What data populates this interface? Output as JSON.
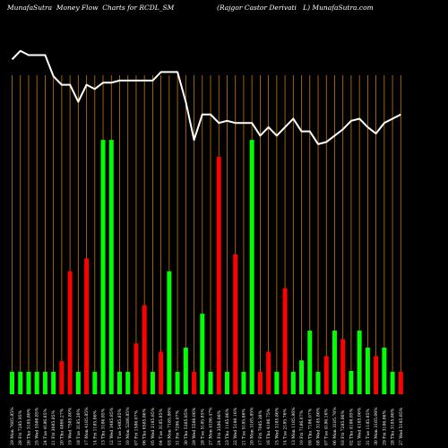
{
  "chart_data": {
    "type": "bar",
    "title": "MunafaSutra  Money Flow  Charts for RCDL_SM                    (Rajgor Castor Derivati   L) MunafaSutra.com",
    "x": [
      "29 Mon 7685.85%",
      "28 Fri 7285.95%",
      "26 Thu 3185.86%",
      "25 Wed 5586.85%",
      "24 Tue 4186.85%",
      "21 Fri 3085.85%",
      "20 Thu 4860.27%",
      "19 Wed 7585.80%",
      "18 Tue 3185.26%",
      "17 Mon 4185.85%",
      "14 Fri 1185.86%",
      "13 Thu 3186.85%",
      "12 Wed 3485.85%",
      "11 Tue 5485.85%",
      "10 Mon 5286.85%",
      "07 Fri 1586.07%",
      "06 Thu 6585.86%",
      "05 Wed 3185.85%",
      "04 Tue 3185.85%",
      "03 Mon 7185.86%",
      "31 Fri 7286.07%",
      "30 Thu 5385.85%",
      "29 Wed 5586.06%",
      "28 Tue 5185.85%",
      "27 Mon 4186.47%",
      "24 Fri 3586.08%",
      "23 Thu 1185.86%",
      "22 Wed 5186.16%",
      "21 Tue 5185.86%",
      "20 Mon 3185.85%",
      "17 Fri 7085.38%",
      "16 Thu 4186.75%",
      "15 Wed 3185.86%",
      "14 Tue 2185.76%",
      "13 Mon 1185.86%",
      "10 Fri 7186.07%",
      "09 Thu 7186.07%",
      "08 Wed 3185.86%",
      "07 Tue 4186.16%",
      "06 Mon 3185.76%",
      "03 Fri 7285.86%",
      "02 Thu 4186.85%",
      "01 Wed 4185.06%",
      "31 Tue 1185.85%",
      "30 Mon 3185.06%",
      "29 Fri 3186.86%",
      "28 Thu 3185.86%",
      "27 Wed 5185.85%"
    ],
    "series": [
      {
        "values": [
          0.53,
          0.53,
          0.53,
          0.53,
          0.53,
          0.53,
          0.78,
          2.9,
          0.53,
          3.2,
          0.53,
          6.0,
          6.0,
          0.53,
          0.53,
          1.2,
          2.1,
          0.53,
          1.0,
          2.9,
          0.53,
          1.1,
          0.53,
          1.9,
          0.53,
          5.6,
          0.53,
          3.3,
          0.53,
          6.0,
          0.53,
          1.0,
          0.53,
          2.5,
          0.53,
          0.8,
          1.5,
          0.53,
          0.9,
          1.5,
          1.3,
          0.55,
          1.5,
          1.1,
          0.9,
          1.1,
          0.53,
          0.53
        ],
        "colors": [
          "green",
          "green",
          "green",
          "green",
          "green",
          "green",
          "red",
          "red",
          "green",
          "red",
          "green",
          "green",
          "green",
          "green",
          "green",
          "red",
          "red",
          "green",
          "red",
          "green",
          "green",
          "green",
          "red",
          "green",
          "green",
          "red",
          "green",
          "red",
          "green",
          "green",
          "red",
          "red",
          "green",
          "red",
          "green",
          "green",
          "green",
          "green",
          "red",
          "green",
          "red",
          "green",
          "green",
          "green",
          "red",
          "green",
          "green",
          "red"
        ]
      },
      {
        "values": [
          7.9,
          8.1,
          8.0,
          8.0,
          8.0,
          7.5,
          7.3,
          7.3,
          6.9,
          7.3,
          7.2,
          7.35,
          7.35,
          7.4,
          7.4,
          7.4,
          7.4,
          7.4,
          7.6,
          7.6,
          7.6,
          6.9,
          6.0,
          6.6,
          6.6,
          6.4,
          6.45,
          6.4,
          6.4,
          6.4,
          6.1,
          6.3,
          6.1,
          6.3,
          6.5,
          6.2,
          6.2,
          5.9,
          5.95,
          6.1,
          6.25,
          6.45,
          6.5,
          6.3,
          6.15,
          6.4,
          6.5,
          6.6
        ]
      }
    ],
    "colors": {
      "green": "#00ff00",
      "red": "#ff0000",
      "line": "#ffffff",
      "grid": "#c97a00",
      "background": "#000000"
    },
    "ylim": [
      0,
      9.3
    ],
    "grid": true
  }
}
